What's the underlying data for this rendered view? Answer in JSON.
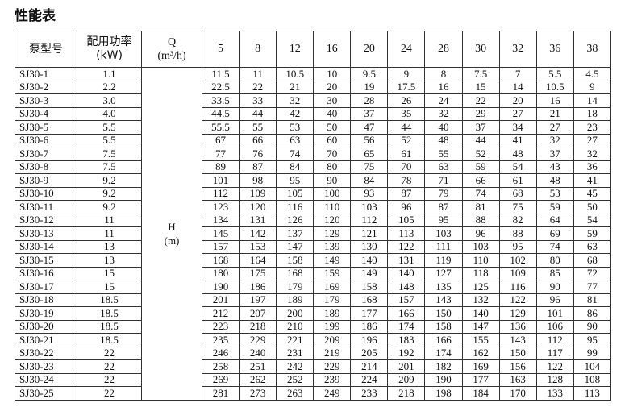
{
  "title": "性能表",
  "table": {
    "header": {
      "model": "泵型号",
      "power": [
        "配用功率",
        "(kW)"
      ],
      "flow_label": [
        "Q",
        "(m³/h)"
      ],
      "flows": [
        5,
        8,
        12,
        16,
        20,
        24,
        28,
        30,
        32,
        36,
        38
      ]
    },
    "head_label": [
      "H",
      "(m)"
    ],
    "rows": [
      {
        "model": "SJ30-1",
        "power": "1.1",
        "heads": [
          11.5,
          11,
          10.5,
          10,
          9.5,
          9,
          8,
          7.5,
          7,
          5.5,
          4.5
        ]
      },
      {
        "model": "SJ30-2",
        "power": "2.2",
        "heads": [
          22.5,
          22,
          21,
          20,
          19,
          17.5,
          16,
          15,
          14,
          10.5,
          9
        ]
      },
      {
        "model": "SJ30-3",
        "power": "3.0",
        "heads": [
          33.5,
          33,
          32,
          30,
          28,
          26,
          24,
          22,
          20,
          16,
          14
        ]
      },
      {
        "model": "SJ30-4",
        "power": "4.0",
        "heads": [
          44.5,
          44,
          42,
          40,
          37,
          35,
          32,
          29,
          27,
          21,
          18
        ]
      },
      {
        "model": "SJ30-5",
        "power": "5.5",
        "heads": [
          55.5,
          55,
          53,
          50,
          47,
          44,
          40,
          37,
          34,
          27,
          23
        ]
      },
      {
        "model": "SJ30-6",
        "power": "5.5",
        "heads": [
          67,
          66,
          63,
          60,
          56,
          52,
          48,
          44,
          41,
          32,
          27
        ]
      },
      {
        "model": "SJ30-7",
        "power": "7.5",
        "heads": [
          77,
          76,
          74,
          70,
          65,
          61,
          55,
          52,
          48,
          37,
          32
        ]
      },
      {
        "model": "SJ30-8",
        "power": "7.5",
        "heads": [
          89,
          87,
          84,
          80,
          75,
          70,
          63,
          59,
          54,
          43,
          36
        ]
      },
      {
        "model": "SJ30-9",
        "power": "9.2",
        "heads": [
          101,
          98,
          95,
          90,
          84,
          78,
          71,
          66,
          61,
          48,
          41
        ]
      },
      {
        "model": "SJ30-10",
        "power": "9.2",
        "heads": [
          112,
          109,
          105,
          100,
          93,
          87,
          79,
          74,
          68,
          53,
          45
        ]
      },
      {
        "model": "SJ30-11",
        "power": "9.2",
        "heads": [
          123,
          120,
          116,
          110,
          103,
          96,
          87,
          81,
          75,
          59,
          50
        ]
      },
      {
        "model": "SJ30-12",
        "power": "11",
        "heads": [
          134,
          131,
          126,
          120,
          112,
          105,
          95,
          88,
          82,
          64,
          54
        ]
      },
      {
        "model": "SJ30-13",
        "power": "11",
        "heads": [
          145,
          142,
          137,
          129,
          121,
          113,
          103,
          96,
          88,
          69,
          59
        ]
      },
      {
        "model": "SJ30-14",
        "power": "13",
        "heads": [
          157,
          153,
          147,
          139,
          130,
          122,
          111,
          103,
          95,
          74,
          63
        ]
      },
      {
        "model": "SJ30-15",
        "power": "13",
        "heads": [
          168,
          164,
          158,
          149,
          140,
          131,
          119,
          110,
          102,
          80,
          68
        ]
      },
      {
        "model": "SJ30-16",
        "power": "15",
        "heads": [
          180,
          175,
          168,
          159,
          149,
          140,
          127,
          118,
          109,
          85,
          72
        ]
      },
      {
        "model": "SJ30-17",
        "power": "15",
        "heads": [
          190,
          186,
          179,
          169,
          158,
          148,
          135,
          125,
          116,
          90,
          77
        ]
      },
      {
        "model": "SJ30-18",
        "power": "18.5",
        "heads": [
          201,
          197,
          189,
          179,
          168,
          157,
          143,
          132,
          122,
          96,
          81
        ]
      },
      {
        "model": "SJ30-19",
        "power": "18.5",
        "heads": [
          212,
          207,
          200,
          189,
          177,
          166,
          150,
          140,
          129,
          101,
          86
        ]
      },
      {
        "model": "SJ30-20",
        "power": "18.5",
        "heads": [
          223,
          218,
          210,
          199,
          186,
          174,
          158,
          147,
          136,
          106,
          90
        ]
      },
      {
        "model": "SJ30-21",
        "power": "18.5",
        "heads": [
          235,
          229,
          221,
          209,
          196,
          183,
          166,
          155,
          143,
          112,
          95
        ]
      },
      {
        "model": "SJ30-22",
        "power": "22",
        "heads": [
          246,
          240,
          231,
          219,
          205,
          192,
          174,
          162,
          150,
          117,
          99
        ]
      },
      {
        "model": "SJ30-23",
        "power": "22",
        "heads": [
          258,
          251,
          242,
          229,
          214,
          201,
          182,
          169,
          156,
          122,
          104
        ]
      },
      {
        "model": "SJ30-24",
        "power": "22",
        "heads": [
          269,
          262,
          252,
          239,
          224,
          209,
          190,
          177,
          163,
          128,
          108
        ]
      },
      {
        "model": "SJ30-25",
        "power": "22",
        "heads": [
          281,
          273,
          263,
          249,
          233,
          218,
          198,
          184,
          170,
          133,
          113
        ]
      }
    ]
  }
}
